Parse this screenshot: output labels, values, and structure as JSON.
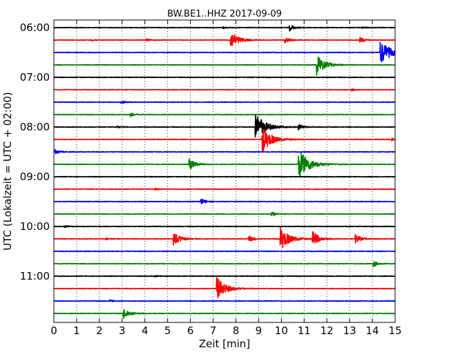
{
  "chart_data": {
    "type": "line",
    "title": "BW.BE1..HHZ 2017-09-09",
    "xlabel": "Zeit  [min]",
    "ylabel": "UTC (Lokalzeit = UTC + 02:00)",
    "xlim": [
      0,
      15
    ],
    "x_ticks": [
      "0",
      "1",
      "2",
      "3",
      "4",
      "5",
      "6",
      "7",
      "8",
      "9",
      "10",
      "11",
      "12",
      "13",
      "14",
      "15"
    ],
    "y_tick_labels": [
      "06:00",
      "07:00",
      "08:00",
      "09:00",
      "10:00",
      "11:00"
    ],
    "grid": "vertical dotted",
    "trace_interval_min": 15,
    "traces": [
      {
        "start": "06:00",
        "color": "#000000",
        "events": [
          {
            "t": 7.5,
            "amp": 0.08
          },
          {
            "t": 10.4,
            "amp": 0.28
          },
          {
            "t": 13.6,
            "amp": 0.06
          }
        ]
      },
      {
        "start": "06:15",
        "color": "#ff0000",
        "events": [
          {
            "t": 1.7,
            "amp": 0.1
          },
          {
            "t": 4.1,
            "amp": 0.1
          },
          {
            "t": 7.8,
            "amp": 0.8
          },
          {
            "t": 10.2,
            "amp": 0.25
          },
          {
            "t": 13.5,
            "amp": 0.25
          }
        ]
      },
      {
        "start": "06:30",
        "color": "#0000ff",
        "events": [
          {
            "t": 14.4,
            "amp": 1.1
          }
        ]
      },
      {
        "start": "06:45",
        "color": "#008000",
        "events": [
          {
            "t": 11.6,
            "amp": 0.9
          }
        ]
      },
      {
        "start": "07:00",
        "color": "#000000",
        "events": []
      },
      {
        "start": "07:15",
        "color": "#ff0000",
        "events": [
          {
            "t": 13.1,
            "amp": 0.1
          }
        ]
      },
      {
        "start": "07:30",
        "color": "#0000ff",
        "events": [
          {
            "t": 3.0,
            "amp": 0.15
          }
        ]
      },
      {
        "start": "07:45",
        "color": "#008000",
        "events": [
          {
            "t": 3.4,
            "amp": 0.15
          }
        ]
      },
      {
        "start": "08:00",
        "color": "#000000",
        "events": [
          {
            "t": 2.8,
            "amp": 0.1
          },
          {
            "t": 8.9,
            "amp": 1.2
          },
          {
            "t": 10.8,
            "amp": 0.25
          }
        ]
      },
      {
        "start": "08:15",
        "color": "#ff0000",
        "events": [
          {
            "t": 9.2,
            "amp": 1.1
          },
          {
            "t": 14.9,
            "amp": 0.1
          }
        ]
      },
      {
        "start": "08:30",
        "color": "#0000ff",
        "events": [
          {
            "t": 0.1,
            "amp": 0.2
          }
        ]
      },
      {
        "start": "08:45",
        "color": "#008000",
        "events": [
          {
            "t": 6.0,
            "amp": 0.5
          },
          {
            "t": 10.8,
            "amp": 1.3
          }
        ]
      },
      {
        "start": "09:00",
        "color": "#000000",
        "events": []
      },
      {
        "start": "09:15",
        "color": "#ff0000",
        "events": [
          {
            "t": 4.5,
            "amp": 0.08
          }
        ]
      },
      {
        "start": "09:30",
        "color": "#0000ff",
        "events": [
          {
            "t": 6.5,
            "amp": 0.3
          }
        ]
      },
      {
        "start": "09:45",
        "color": "#008000",
        "events": [
          {
            "t": 9.6,
            "amp": 0.2
          }
        ]
      },
      {
        "start": "10:00",
        "color": "#000000",
        "events": [
          {
            "t": 0.5,
            "amp": 0.08
          }
        ]
      },
      {
        "start": "10:15",
        "color": "#ff0000",
        "events": [
          {
            "t": 2.3,
            "amp": 0.1
          },
          {
            "t": 5.3,
            "amp": 0.6
          },
          {
            "t": 8.6,
            "amp": 0.3
          },
          {
            "t": 10.0,
            "amp": 1.0
          },
          {
            "t": 11.4,
            "amp": 0.65
          },
          {
            "t": 13.3,
            "amp": 0.4
          }
        ]
      },
      {
        "start": "10:30",
        "color": "#0000ff",
        "events": []
      },
      {
        "start": "10:45",
        "color": "#008000",
        "events": [
          {
            "t": 14.1,
            "amp": 0.25
          }
        ]
      },
      {
        "start": "11:00",
        "color": "#000000",
        "events": [
          {
            "t": 4.5,
            "amp": 0.05
          }
        ]
      },
      {
        "start": "11:15",
        "color": "#ff0000",
        "events": [
          {
            "t": 7.2,
            "amp": 1.0
          }
        ]
      },
      {
        "start": "11:30",
        "color": "#0000ff",
        "events": [
          {
            "t": 2.5,
            "amp": 0.1
          }
        ]
      },
      {
        "start": "11:45",
        "color": "#008000",
        "events": [
          {
            "t": 3.1,
            "amp": 0.5
          }
        ]
      }
    ]
  }
}
